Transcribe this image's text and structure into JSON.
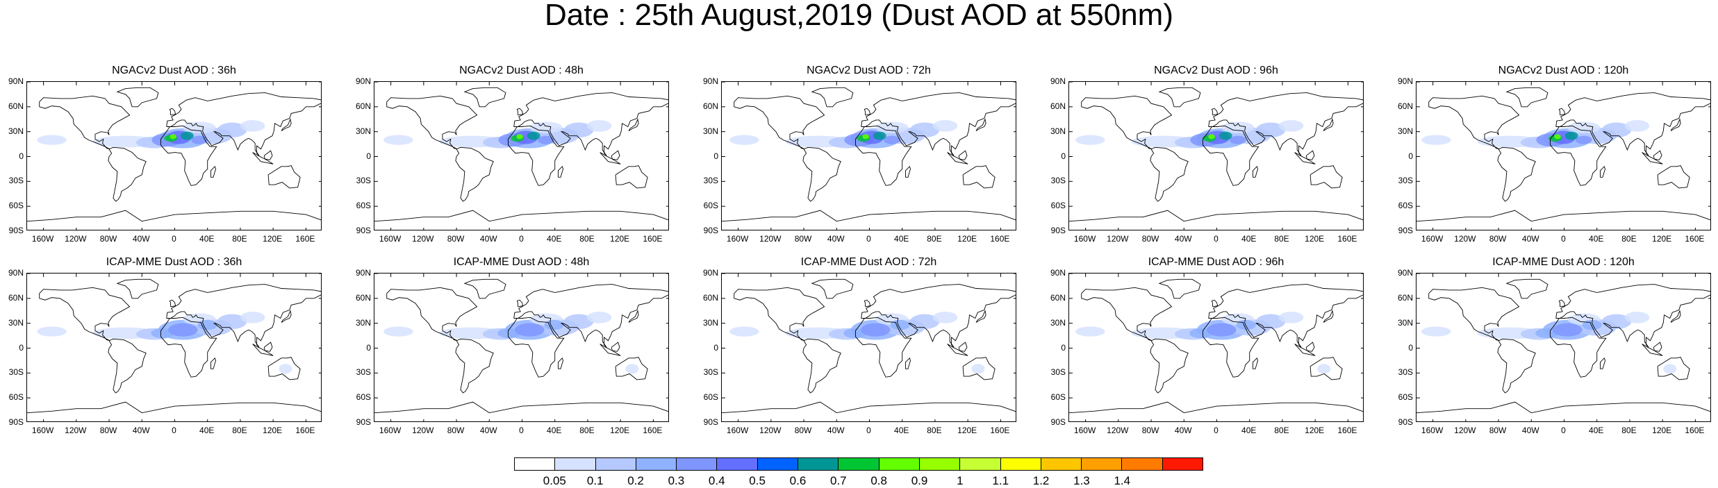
{
  "title": "Date : 25th August,2019 (Dust AOD at 550nm)",
  "panels": [
    {
      "title": "NGACv2 Dust AOD : 36h",
      "model": "NGACv2",
      "hour": 36
    },
    {
      "title": "NGACv2 Dust AOD : 48h",
      "model": "NGACv2",
      "hour": 48
    },
    {
      "title": "NGACv2 Dust AOD : 72h",
      "model": "NGACv2",
      "hour": 72
    },
    {
      "title": "NGACv2 Dust AOD : 96h",
      "model": "NGACv2",
      "hour": 96
    },
    {
      "title": "NGACv2 Dust AOD : 120h",
      "model": "NGACv2",
      "hour": 120
    },
    {
      "title": "ICAP-MME Dust AOD : 36h",
      "model": "ICAP-MME",
      "hour": 36
    },
    {
      "title": "ICAP-MME Dust AOD : 48h",
      "model": "ICAP-MME",
      "hour": 48
    },
    {
      "title": "ICAP-MME Dust AOD : 72h",
      "model": "ICAP-MME",
      "hour": 72
    },
    {
      "title": "ICAP-MME Dust AOD : 96h",
      "model": "ICAP-MME",
      "hour": 96
    },
    {
      "title": "ICAP-MME Dust AOD : 120h",
      "model": "ICAP-MME",
      "hour": 120
    }
  ],
  "lat_ticks": [
    "90N",
    "60N",
    "30N",
    "0",
    "30S",
    "60S",
    "90S"
  ],
  "lon_ticks": [
    "160W",
    "120W",
    "80W",
    "40W",
    "0",
    "40E",
    "80E",
    "120E",
    "160E"
  ],
  "lon_tick_values": [
    -160,
    -120,
    -80,
    -40,
    0,
    40,
    80,
    120,
    160
  ],
  "lat_tick_values": [
    90,
    60,
    30,
    0,
    -30,
    -60,
    -90
  ],
  "colorbar": {
    "labels": [
      "0.05",
      "0.1",
      "0.2",
      "0.3",
      "0.4",
      "0.5",
      "0.6",
      "0.7",
      "0.8",
      "0.9",
      "1",
      "1.1",
      "1.2",
      "1.3",
      "1.4"
    ],
    "colors": [
      "#ffffff",
      "#d6e2ff",
      "#b5c9ff",
      "#8eb2ff",
      "#7f96ff",
      "#6370ff",
      "#0063ff",
      "#009696",
      "#00c633",
      "#63ff00",
      "#96ff00",
      "#c6ff33",
      "#ffff00",
      "#ffc600",
      "#ffa000",
      "#ff7c00",
      "#ff1900"
    ]
  }
}
